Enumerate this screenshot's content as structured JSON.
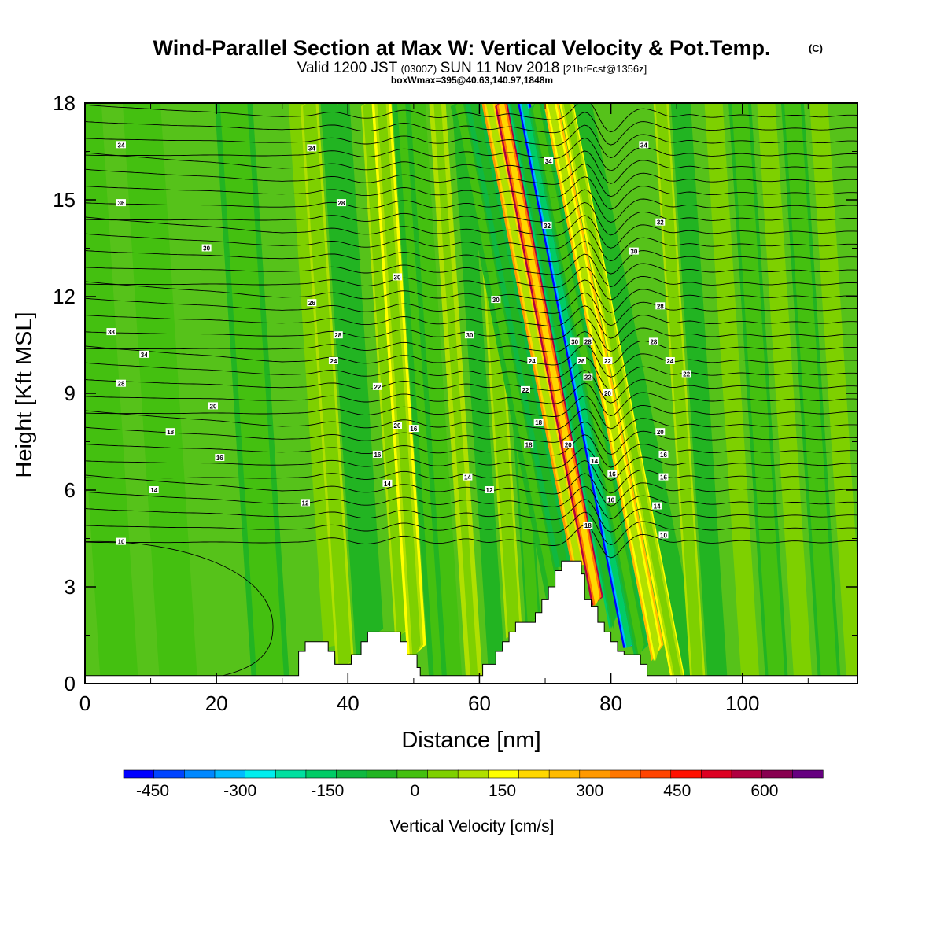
{
  "chart_data": {
    "type": "heatmap",
    "title": "Wind-Parallel Section at Max W: Vertical Velocity & Pot.Temp.",
    "title_mark": "(C)",
    "subtitle_parts": [
      "Valid 1200 JST",
      "(0300Z)",
      "SUN 11 Nov 2018",
      "[21hrFcst@1356z]"
    ],
    "subtitle2": "boxWmax=395@40.63,140.97,1848m",
    "xlabel": "Distance [nm]",
    "ylabel": "Height [Kft MSL]",
    "xlim": [
      0,
      117.5
    ],
    "ylim": [
      0,
      18
    ],
    "xticks": [
      0,
      20,
      40,
      60,
      80,
      100
    ],
    "yticks": [
      0,
      3,
      6,
      9,
      12,
      15,
      18
    ],
    "colorbar": {
      "title": "Vertical Velocity [cm/s]",
      "ticks": [
        -450,
        -300,
        -150,
        0,
        150,
        300,
        450,
        600
      ],
      "range": [
        -500,
        700
      ],
      "colors": [
        "#0000ff",
        "#0044ff",
        "#0088ff",
        "#00bbff",
        "#00eeee",
        "#00e0a0",
        "#00cc66",
        "#10b840",
        "#22b422",
        "#44c010",
        "#7ed000",
        "#b0e000",
        "#ffff00",
        "#ffd700",
        "#ffbb00",
        "#ff9900",
        "#ff7700",
        "#ff4400",
        "#ff1100",
        "#dd0022",
        "#b00040",
        "#880050",
        "#660080"
      ]
    },
    "terrain": [
      [
        0,
        0.25
      ],
      [
        32.5,
        0.25
      ],
      [
        32.5,
        1.0
      ],
      [
        33.5,
        1.0
      ],
      [
        33.5,
        1.3
      ],
      [
        37,
        1.3
      ],
      [
        37,
        1.0
      ],
      [
        38,
        1.0
      ],
      [
        38,
        0.6
      ],
      [
        40.5,
        0.6
      ],
      [
        40.5,
        0.9
      ],
      [
        42,
        0.9
      ],
      [
        42,
        1.3
      ],
      [
        43,
        1.3
      ],
      [
        43,
        1.6
      ],
      [
        48,
        1.6
      ],
      [
        48,
        1.3
      ],
      [
        49,
        1.3
      ],
      [
        49,
        0.9
      ],
      [
        50.5,
        0.9
      ],
      [
        50.5,
        0.5
      ],
      [
        51,
        0.5
      ],
      [
        51,
        0.25
      ],
      [
        60.5,
        0.25
      ],
      [
        60.5,
        0.6
      ],
      [
        62.5,
        0.6
      ],
      [
        62.5,
        1.0
      ],
      [
        63.5,
        1.0
      ],
      [
        63.5,
        1.3
      ],
      [
        64.5,
        1.3
      ],
      [
        64.5,
        1.6
      ],
      [
        65.5,
        1.6
      ],
      [
        65.5,
        1.9
      ],
      [
        68.5,
        1.9
      ],
      [
        68.5,
        2.2
      ],
      [
        69.5,
        2.2
      ],
      [
        69.5,
        2.6
      ],
      [
        70.5,
        2.6
      ],
      [
        70.5,
        3.0
      ],
      [
        71.5,
        3.0
      ],
      [
        71.5,
        3.5
      ],
      [
        72.5,
        3.5
      ],
      [
        72.5,
        3.8
      ],
      [
        75.5,
        3.8
      ],
      [
        75.5,
        3.4
      ],
      [
        76,
        3.4
      ],
      [
        76,
        2.6
      ],
      [
        77,
        2.6
      ],
      [
        77,
        2.4
      ],
      [
        78,
        2.4
      ],
      [
        78,
        1.9
      ],
      [
        79,
        1.9
      ],
      [
        79,
        1.6
      ],
      [
        80,
        1.6
      ],
      [
        80,
        1.3
      ],
      [
        81,
        1.3
      ],
      [
        81,
        1.0
      ],
      [
        82,
        1.0
      ],
      [
        82,
        0.9
      ],
      [
        84.5,
        0.9
      ],
      [
        84.5,
        0.6
      ],
      [
        85.5,
        0.6
      ],
      [
        85.5,
        0.25
      ],
      [
        117.5,
        0.25
      ]
    ],
    "w_bands": [
      {
        "x": 4,
        "w": 2.5,
        "v": -30
      },
      {
        "x": 13,
        "w": 2.5,
        "v": -30
      },
      {
        "x": 27,
        "w": 2.5,
        "v": -40
      },
      {
        "x": 36.5,
        "w": 1.0,
        "v": 70
      },
      {
        "x": 38.5,
        "w": 1.2,
        "v": 110
      },
      {
        "x": 41.5,
        "w": 1.1,
        "v": -60
      },
      {
        "x": 43.5,
        "w": 1.0,
        "v": -50
      },
      {
        "x": 47.5,
        "w": 1.0,
        "v": 90
      },
      {
        "x": 49.5,
        "w": 1.3,
        "v": 170
      },
      {
        "x": 52.5,
        "w": 1.2,
        "v": -70
      },
      {
        "x": 55,
        "w": 1.0,
        "v": -30
      },
      {
        "x": 58,
        "w": 1.1,
        "v": 120
      },
      {
        "x": 61.5,
        "w": 1.1,
        "v": -50
      },
      {
        "x": 64.5,
        "w": 1.1,
        "v": 90
      },
      {
        "x": 67.5,
        "w": 1.0,
        "v": -40
      },
      {
        "x": 70.2,
        "w": 1.2,
        "v": -70
      },
      {
        "x": 72.5,
        "w": 1.2,
        "v": -130
      },
      {
        "x": 74.8,
        "w": 1.0,
        "v": 300
      },
      {
        "x": 76.6,
        "w": 0.9,
        "v": 560
      },
      {
        "x": 78.6,
        "w": 0.9,
        "v": -180
      },
      {
        "x": 80.1,
        "w": 0.85,
        "v": -470
      },
      {
        "x": 81.8,
        "w": 1.1,
        "v": -90
      },
      {
        "x": 84.2,
        "w": 1.0,
        "v": 240
      },
      {
        "x": 86.6,
        "w": 1.0,
        "v": 150
      },
      {
        "x": 89,
        "w": 1.2,
        "v": -60
      },
      {
        "x": 92,
        "w": 1.0,
        "v": 80
      },
      {
        "x": 95,
        "w": 1.3,
        "v": -60
      },
      {
        "x": 100,
        "w": 1.2,
        "v": 50
      },
      {
        "x": 104,
        "w": 1.5,
        "v": -45
      },
      {
        "x": 108,
        "w": 1.2,
        "v": 45
      },
      {
        "x": 112,
        "w": 1.5,
        "v": -45
      },
      {
        "x": 116,
        "w": 1.2,
        "v": 40
      }
    ],
    "contour_labels": [
      {
        "x": 5.5,
        "y": 16.7,
        "t": "34"
      },
      {
        "x": 5.5,
        "y": 14.9,
        "t": "36"
      },
      {
        "x": 18.5,
        "y": 13.5,
        "t": "30"
      },
      {
        "x": 4.0,
        "y": 10.9,
        "t": "38"
      },
      {
        "x": 9.0,
        "y": 10.2,
        "t": "34"
      },
      {
        "x": 5.5,
        "y": 9.3,
        "t": "28"
      },
      {
        "x": 19.5,
        "y": 8.6,
        "t": "20"
      },
      {
        "x": 13.0,
        "y": 7.8,
        "t": "18"
      },
      {
        "x": 20.5,
        "y": 7.0,
        "t": "16"
      },
      {
        "x": 10.5,
        "y": 6.0,
        "t": "14"
      },
      {
        "x": 33.5,
        "y": 5.6,
        "t": "12"
      },
      {
        "x": 5.5,
        "y": 4.4,
        "t": "10"
      },
      {
        "x": 34.5,
        "y": 16.6,
        "t": "34"
      },
      {
        "x": 39.0,
        "y": 14.9,
        "t": "28"
      },
      {
        "x": 34.5,
        "y": 11.8,
        "t": "26"
      },
      {
        "x": 38.5,
        "y": 10.8,
        "t": "28"
      },
      {
        "x": 37.8,
        "y": 10.0,
        "t": "24"
      },
      {
        "x": 44.5,
        "y": 9.2,
        "t": "22"
      },
      {
        "x": 47.5,
        "y": 12.6,
        "t": "30"
      },
      {
        "x": 47.5,
        "y": 8.0,
        "t": "20"
      },
      {
        "x": 50.0,
        "y": 7.9,
        "t": "16"
      },
      {
        "x": 44.5,
        "y": 7.1,
        "t": "16"
      },
      {
        "x": 46.0,
        "y": 6.2,
        "t": "14"
      },
      {
        "x": 58.5,
        "y": 10.8,
        "t": "30"
      },
      {
        "x": 62.5,
        "y": 11.9,
        "t": "30"
      },
      {
        "x": 58.2,
        "y": 6.4,
        "t": "14"
      },
      {
        "x": 61.5,
        "y": 6.0,
        "t": "12"
      },
      {
        "x": 70.5,
        "y": 16.2,
        "t": "34"
      },
      {
        "x": 70.3,
        "y": 14.2,
        "t": "32"
      },
      {
        "x": 68.0,
        "y": 10.0,
        "t": "24"
      },
      {
        "x": 67.0,
        "y": 9.1,
        "t": "22"
      },
      {
        "x": 69.0,
        "y": 8.1,
        "t": "18"
      },
      {
        "x": 67.5,
        "y": 7.4,
        "t": "18"
      },
      {
        "x": 73.5,
        "y": 7.4,
        "t": "20"
      },
      {
        "x": 74.5,
        "y": 10.6,
        "t": "30"
      },
      {
        "x": 76.5,
        "y": 10.6,
        "t": "28"
      },
      {
        "x": 75.5,
        "y": 10.0,
        "t": "26"
      },
      {
        "x": 76.5,
        "y": 9.5,
        "t": "22"
      },
      {
        "x": 79.5,
        "y": 10.0,
        "t": "22"
      },
      {
        "x": 79.5,
        "y": 9.0,
        "t": "20"
      },
      {
        "x": 77.5,
        "y": 6.9,
        "t": "14"
      },
      {
        "x": 80.2,
        "y": 6.5,
        "t": "16"
      },
      {
        "x": 80.0,
        "y": 5.7,
        "t": "16"
      },
      {
        "x": 76.5,
        "y": 4.9,
        "t": "18"
      },
      {
        "x": 85.0,
        "y": 16.7,
        "t": "34"
      },
      {
        "x": 87.5,
        "y": 14.3,
        "t": "32"
      },
      {
        "x": 83.5,
        "y": 13.4,
        "t": "30"
      },
      {
        "x": 87.5,
        "y": 11.7,
        "t": "28"
      },
      {
        "x": 86.5,
        "y": 10.6,
        "t": "28"
      },
      {
        "x": 89.0,
        "y": 10.0,
        "t": "24"
      },
      {
        "x": 91.5,
        "y": 9.6,
        "t": "22"
      },
      {
        "x": 87.5,
        "y": 7.8,
        "t": "20"
      },
      {
        "x": 88.0,
        "y": 7.1,
        "t": "16"
      },
      {
        "x": 88.0,
        "y": 6.4,
        "t": "16"
      },
      {
        "x": 87.0,
        "y": 5.5,
        "t": "14"
      },
      {
        "x": 88.0,
        "y": 4.6,
        "t": "10"
      }
    ]
  }
}
